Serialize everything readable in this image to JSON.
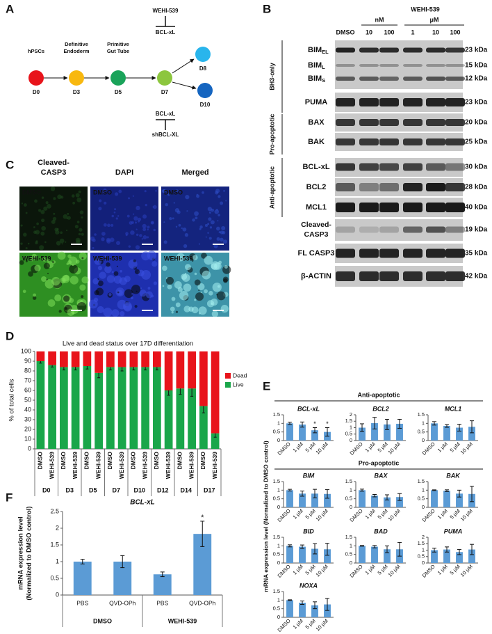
{
  "panel_labels": [
    "A",
    "B",
    "C",
    "D",
    "E",
    "F"
  ],
  "panel_a": {
    "stages": [
      [
        "hPSCs"
      ],
      [
        "Definitive",
        "Endoderm"
      ],
      [
        "Primitive",
        "Gut Tube"
      ]
    ],
    "days": [
      "D0",
      "D3",
      "D5",
      "D7",
      "D8",
      "D10"
    ],
    "top_inhibition": {
      "inhibitor": "WEHI-539",
      "target": "BCL-xL"
    },
    "bottom_inhibition": {
      "target": "BCL-xL",
      "inhibitor": "shBCL-XL"
    }
  },
  "panel_b": {
    "treatment": "WEHI-539",
    "units": [
      "nM",
      "μM"
    ],
    "lanes": [
      "DMSO",
      "10",
      "100",
      "1",
      "10",
      "100"
    ],
    "groups": [
      "BH3-only",
      "Pro-apoptotic",
      "Anti-apoptotic"
    ],
    "rows": [
      {
        "name": "BIM",
        "sub": "EL",
        "size": "23 kDa"
      },
      {
        "name": "BIM",
        "sub": "L",
        "size": "15 kDa"
      },
      {
        "name": "BIM",
        "sub": "S",
        "size": "12 kDa"
      },
      {
        "name": "PUMA",
        "size": "23 kDa"
      },
      {
        "name": "BAX",
        "size": "20 kDa"
      },
      {
        "name": "BAK",
        "size": "25 kDa"
      },
      {
        "name": "BCL-xL",
        "size": "30 kDa"
      },
      {
        "name": "BCL2",
        "size": "28 kDa"
      },
      {
        "name": "MCL1",
        "size": "40 kDa"
      },
      {
        "name": [
          "Cleaved-",
          "CASP3"
        ],
        "size": "19 kDa"
      },
      {
        "name": "FL CASP3",
        "size": "35 kDa"
      },
      {
        "name": "β-ACTIN",
        "size": "42 kDa"
      }
    ]
  },
  "panel_c": {
    "columns": [
      [
        "Cleaved-",
        "CASP3"
      ],
      [
        "DAPI"
      ],
      [
        "Merged"
      ]
    ],
    "rows": [
      "DMSO",
      "WEHI-539"
    ]
  },
  "panel_e": {
    "sections": [
      "Anti-apoptotic",
      "Pro-apoptotic"
    ],
    "ylabel": "mRNA expression level (Normalized to DMSO control)"
  },
  "chart_data": [
    {
      "type": "stacked_bar",
      "title": "Live and dead status over 17D differentiation",
      "ylabel": "% of total cells",
      "categories": [
        "DMSO",
        "WEHI-539",
        "DMSO",
        "WEHI-539",
        "DMSO",
        "WEHI-539",
        "DMSO",
        "WEHI-539",
        "DMSO",
        "WEHI-539",
        "DMSO",
        "WEHI-539",
        "DMSO",
        "WEHI-539",
        "DMSO",
        "WEHI-539"
      ],
      "groups": [
        "D0",
        "D3",
        "D5",
        "D7",
        "D10",
        "D12",
        "D14",
        "D17"
      ],
      "series": [
        {
          "name": "Live",
          "color": "#1aa64a",
          "values": [
            90,
            86,
            84,
            84,
            85,
            78,
            84,
            84,
            84,
            84,
            84,
            60,
            62,
            62,
            44,
            16
          ],
          "errors": [
            2,
            2,
            3,
            3,
            3,
            5,
            3,
            4,
            3,
            3,
            3,
            5,
            6,
            8,
            7,
            4
          ]
        },
        {
          "name": "Dead",
          "color": "#e8141b",
          "values": [
            10,
            14,
            16,
            16,
            15,
            22,
            16,
            16,
            16,
            16,
            16,
            40,
            38,
            38,
            56,
            84
          ]
        }
      ],
      "ylim": [
        0,
        100
      ],
      "yticks": [
        0,
        10,
        20,
        30,
        40,
        50,
        60,
        70,
        80,
        90,
        100
      ],
      "legend": "right"
    },
    {
      "type": "bar",
      "title": "BCL-xL",
      "categories": [
        "DMSO",
        "1 μM",
        "5 μM",
        "10 μM"
      ],
      "values": [
        1,
        0.93,
        0.6,
        0.5
      ],
      "errors": [
        0.07,
        0.15,
        0.15,
        0.25
      ],
      "significance": [
        null,
        null,
        "*",
        "*"
      ],
      "color": "#5b9bd5",
      "ylim": [
        0,
        1.5
      ],
      "yticks": [
        0,
        0.5,
        1,
        1.5
      ]
    },
    {
      "type": "bar",
      "title": "BCL2",
      "categories": [
        "DMSO",
        "1 μM",
        "5 μM",
        "10 μM"
      ],
      "values": [
        1,
        1.35,
        1.25,
        1.3
      ],
      "errors": [
        0.3,
        0.45,
        0.4,
        0.35
      ],
      "color": "#5b9bd5",
      "ylim": [
        0,
        2
      ],
      "yticks": [
        0,
        0.5,
        1,
        1.5,
        2
      ]
    },
    {
      "type": "bar",
      "title": "MCL1",
      "categories": [
        "DMSO",
        "1 μM",
        "5 μM",
        "10 μM"
      ],
      "values": [
        1,
        0.85,
        0.75,
        0.8
      ],
      "errors": [
        0.1,
        0.08,
        0.2,
        0.35
      ],
      "color": "#5b9bd5",
      "ylim": [
        0,
        1.5
      ],
      "yticks": [
        0,
        0.5,
        1,
        1.5
      ]
    },
    {
      "type": "bar",
      "title": "BIM",
      "categories": [
        "DMSO",
        "1 μM",
        "5 μM",
        "10 μM"
      ],
      "values": [
        1,
        0.8,
        0.8,
        0.78
      ],
      "errors": [
        0.05,
        0.15,
        0.25,
        0.25
      ],
      "color": "#5b9bd5",
      "ylim": [
        0,
        1.5
      ],
      "yticks": [
        0,
        0.5,
        1,
        1.5
      ]
    },
    {
      "type": "bar",
      "title": "BAX",
      "categories": [
        "DMSO",
        "1 μM",
        "5 μM",
        "10 μM"
      ],
      "values": [
        1,
        0.68,
        0.58,
        0.6
      ],
      "errors": [
        0.06,
        0.07,
        0.15,
        0.2
      ],
      "color": "#5b9bd5",
      "ylim": [
        0,
        1.5
      ],
      "yticks": [
        0,
        0.5,
        1,
        1.5
      ]
    },
    {
      "type": "bar",
      "title": "BAK",
      "categories": [
        "DMSO",
        "1 μM",
        "5 μM",
        "10 μM"
      ],
      "values": [
        1,
        0.97,
        0.8,
        0.78
      ],
      "errors": [
        0.02,
        0.05,
        0.2,
        0.45
      ],
      "color": "#5b9bd5",
      "ylim": [
        0,
        1.5
      ],
      "yticks": [
        0,
        0.5,
        1,
        1.5
      ]
    },
    {
      "type": "bar",
      "title": "BID",
      "categories": [
        "DMSO",
        "1 μM",
        "5 μM",
        "10 μM"
      ],
      "values": [
        1,
        0.95,
        0.83,
        0.8
      ],
      "errors": [
        0.06,
        0.1,
        0.3,
        0.35
      ],
      "color": "#5b9bd5",
      "ylim": [
        0,
        1.5
      ],
      "yticks": [
        0,
        0.5,
        1,
        1.5
      ]
    },
    {
      "type": "bar",
      "title": "BAD",
      "categories": [
        "DMSO",
        "1 μM",
        "5 μM",
        "10 μM"
      ],
      "values": [
        1,
        0.95,
        0.8,
        0.8
      ],
      "errors": [
        0.02,
        0.07,
        0.2,
        0.4
      ],
      "color": "#5b9bd5",
      "ylim": [
        0,
        1.5
      ],
      "yticks": [
        0,
        0.5,
        1,
        1.5
      ]
    },
    {
      "type": "bar",
      "title": "PUMA",
      "categories": [
        "DMSO",
        "1 μM",
        "5 μM",
        "10 μM"
      ],
      "values": [
        1,
        1.05,
        0.85,
        1.05
      ],
      "errors": [
        0.15,
        0.2,
        0.2,
        0.4
      ],
      "color": "#5b9bd5",
      "ylim": [
        0,
        2
      ],
      "yticks": [
        0,
        0.5,
        1,
        1.5,
        2
      ]
    },
    {
      "type": "bar",
      "title": "NOXA",
      "categories": [
        "DMSO",
        "1 μM",
        "5 μM",
        "10 μM"
      ],
      "values": [
        1,
        0.85,
        0.7,
        0.75
      ],
      "errors": [
        0.02,
        0.1,
        0.2,
        0.35
      ],
      "color": "#5b9bd5",
      "ylim": [
        0,
        1.5
      ],
      "yticks": [
        0,
        0.5,
        1,
        1.5
      ]
    },
    {
      "type": "bar",
      "title": "BCL-xL",
      "ylabel": [
        "mRNA expression level",
        "(Normalized to DMSO control)"
      ],
      "categories": [
        "PBS",
        "QVD-OPh",
        "PBS",
        "QVD-OPh"
      ],
      "groups": [
        "DMSO",
        "WEHI-539"
      ],
      "values": [
        1,
        1,
        0.62,
        1.83
      ],
      "errors": [
        0.07,
        0.18,
        0.07,
        0.38
      ],
      "significance": [
        null,
        null,
        null,
        "*"
      ],
      "color": "#5b9bd5",
      "ylim": [
        0,
        2.5
      ],
      "yticks": [
        0,
        0.5,
        1,
        1.5,
        2,
        2.5
      ]
    }
  ]
}
